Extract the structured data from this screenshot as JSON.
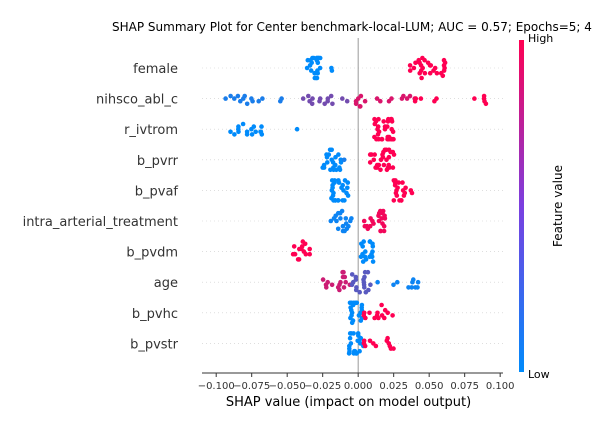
{
  "chart_data": {
    "type": "scatter",
    "variant": "shap-beeswarm",
    "title": "SHAP Summary Plot for Center benchmark-local-LUM; AUC = 0.57; Epochs=5; 4",
    "xlabel": "SHAP value (impact on model output)",
    "xlim": [
      -0.11,
      0.102
    ],
    "xticks": [
      -0.1,
      -0.075,
      -0.05,
      -0.025,
      0.0,
      0.025,
      0.05,
      0.075,
      0.1
    ],
    "xtick_labels": [
      "−0.100",
      "−0.075",
      "−0.050",
      "−0.025",
      "0.000",
      "0.025",
      "0.050",
      "0.075",
      "0.100"
    ],
    "colorbar": {
      "label": "Feature value",
      "high_label": "High",
      "low_label": "Low",
      "low_color": "#008bfb",
      "high_color": "#ff0052"
    },
    "zero_line_color": "#999999",
    "features": [
      {
        "name": "female",
        "clusters": [
          [
            -0.036,
            -0.026,
            22,
            0.0
          ],
          [
            -0.019,
            -0.018,
            2,
            0.0
          ],
          [
            0.035,
            0.063,
            28,
            1.0
          ]
        ]
      },
      {
        "name": "nihsco_abl_c",
        "clusters": [
          [
            -0.102,
            -0.05,
            14,
            0.1
          ],
          [
            -0.05,
            -0.005,
            14,
            0.45
          ],
          [
            -0.005,
            0.04,
            16,
            0.85
          ],
          [
            0.04,
            0.095,
            10,
            1.0
          ]
        ]
      },
      {
        "name": "r_ivtrom",
        "clusters": [
          [
            -0.09,
            -0.066,
            16,
            0.0
          ],
          [
            -0.043,
            -0.043,
            1,
            0.0
          ],
          [
            0.011,
            0.025,
            34,
            1.0
          ]
        ]
      },
      {
        "name": "b_pvrr",
        "clusters": [
          [
            -0.027,
            -0.012,
            22,
            0.0
          ],
          [
            -0.01,
            -0.009,
            1,
            0.1
          ],
          [
            0.008,
            0.026,
            28,
            1.0
          ]
        ]
      },
      {
        "name": "b_pvaf",
        "clusters": [
          [
            -0.019,
            -0.007,
            26,
            0.0
          ],
          [
            0.025,
            0.038,
            20,
            1.0
          ]
        ]
      },
      {
        "name": "intra_arterial_treatment",
        "clusters": [
          [
            -0.024,
            -0.004,
            18,
            0.05
          ],
          [
            0.003,
            0.019,
            22,
            0.95
          ]
        ]
      },
      {
        "name": "b_pvdm",
        "clusters": [
          [
            -0.049,
            -0.032,
            14,
            1.0
          ],
          [
            0.002,
            0.011,
            18,
            0.0
          ]
        ]
      },
      {
        "name": "age",
        "clusters": [
          [
            -0.025,
            -0.005,
            16,
            0.8
          ],
          [
            -0.005,
            0.01,
            18,
            0.35
          ],
          [
            0.01,
            0.045,
            10,
            0.05
          ]
        ]
      },
      {
        "name": "b_pvhc",
        "clusters": [
          [
            -0.006,
            0.003,
            20,
            0.0
          ],
          [
            0.003,
            0.025,
            14,
            1.0
          ]
        ]
      },
      {
        "name": "b_pvstr",
        "clusters": [
          [
            -0.007,
            0.004,
            22,
            0.0
          ],
          [
            0.004,
            0.025,
            12,
            1.0
          ]
        ]
      }
    ]
  }
}
